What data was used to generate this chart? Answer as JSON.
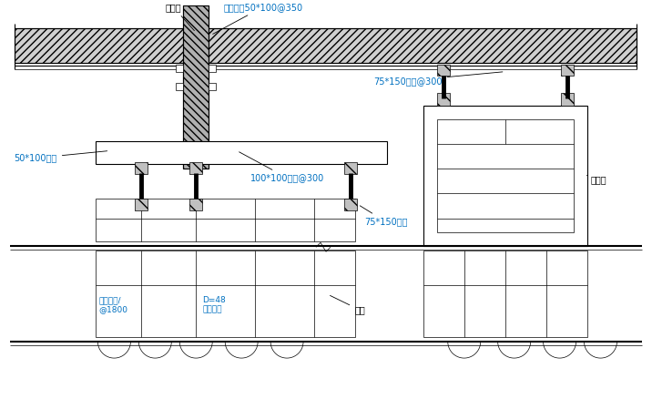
{
  "bg": "#ffffff",
  "blue": "#0070c0",
  "labels": {
    "heban": "胶合板",
    "lidang": "立档方木50*100@350",
    "fangmu50": "50*100方木",
    "fangmu100": "100*100方木@300",
    "fangmu75a": "75*150方木",
    "fangmu75b": "75*150方木@300",
    "banjia": "半门架",
    "menjia": "门架",
    "shuiping": "水平钢管/\n@1800",
    "gangguan": "D=48\n钢管立杆"
  }
}
